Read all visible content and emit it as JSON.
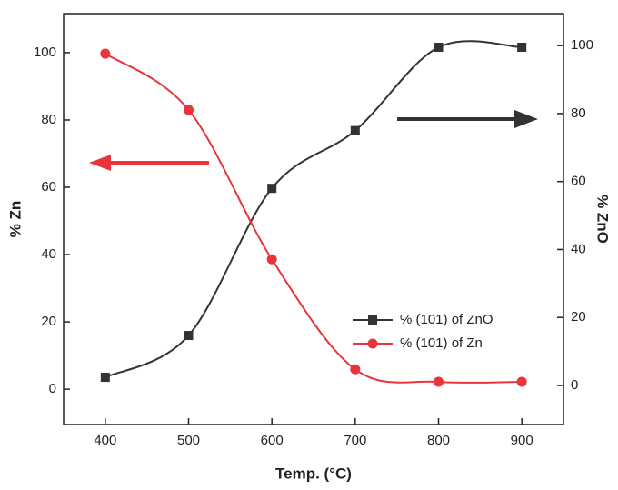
{
  "chart_data": {
    "type": "line",
    "x_label": "Temp. (°C)",
    "y_label": "% Zn",
    "y2_label": "% ZnO",
    "x": [
      400,
      500,
      600,
      700,
      800,
      900
    ],
    "series": [
      {
        "name": "% (101) of ZnO",
        "color": "#333333",
        "marker": "square",
        "axis": "y2",
        "values": [
          2.4,
          14.7,
          58,
          75,
          99.5,
          99.5
        ]
      },
      {
        "name": "% (101) of Zn",
        "color": "#e8343a",
        "marker": "circle",
        "values": [
          99.7,
          83,
          38.6,
          5.9,
          2.2,
          2.2
        ]
      }
    ],
    "xlim": [
      350,
      950
    ],
    "xticks": [
      400,
      500,
      600,
      700,
      800,
      900
    ],
    "ylim": [
      -10.5,
      111.6
    ],
    "yticks": [
      0,
      20,
      40,
      60,
      80,
      100
    ],
    "y2lim": [
      -11.5,
      109.4
    ],
    "y2ticks": [
      0,
      20,
      40,
      60,
      80,
      100
    ],
    "legend": "lower-right",
    "smooth": true
  }
}
